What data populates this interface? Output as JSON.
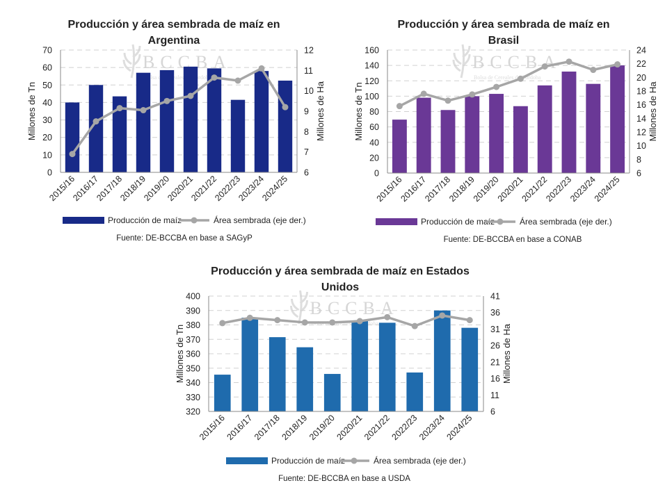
{
  "categories": [
    "2015/16",
    "2016/17",
    "2017/18",
    "2018/19",
    "2019/20",
    "2020/21",
    "2021/22",
    "2022/23",
    "2023/24",
    "2024/25"
  ],
  "line_color": "#a6a6a6",
  "watermark": {
    "logo": "BCCBA",
    "sub": "Bolsa de Cereales de Córdoba"
  },
  "chart_data": [
    {
      "type": "bar+line",
      "title_lines": [
        "Producción y área sembrada de maíz en",
        "Argentina"
      ],
      "ylabel": "Millones de Tn",
      "y2label": "Millones de Ha",
      "ylim": [
        0,
        70
      ],
      "yticks": [
        0,
        10,
        20,
        30,
        40,
        50,
        60,
        70
      ],
      "y2lim": [
        6,
        12
      ],
      "y2ticks": [
        6,
        7,
        8,
        9,
        10,
        11,
        12
      ],
      "grid": true,
      "legend_position": "bottom",
      "bar_color": "#182a88",
      "series": [
        {
          "name": "Producción de maíz",
          "kind": "bar",
          "axis": "left",
          "values": [
            40,
            50,
            43.5,
            57,
            58.5,
            60.5,
            59.5,
            41.5,
            58,
            52.5
          ]
        },
        {
          "name": "Área sembrada (eje der.)",
          "kind": "line",
          "axis": "right",
          "values": [
            6.9,
            8.5,
            9.15,
            9.05,
            9.5,
            9.75,
            10.65,
            10.5,
            11.1,
            9.2
          ]
        }
      ],
      "source": "Fuente: DE-BCCBA en base a SAGyP"
    },
    {
      "type": "bar+line",
      "title_lines": [
        "Producción y área sembrada de maíz en",
        "Brasil"
      ],
      "ylabel": "Millones de Tn",
      "y2label": "Millones de Ha",
      "ylim": [
        0,
        160
      ],
      "yticks": [
        0,
        20,
        40,
        60,
        80,
        100,
        120,
        140,
        160
      ],
      "y2lim": [
        6,
        24
      ],
      "y2ticks": [
        6,
        8,
        10,
        12,
        14,
        16,
        18,
        20,
        22,
        24
      ],
      "grid": true,
      "legend_position": "bottom",
      "bar_color": "#6a3896",
      "series": [
        {
          "name": "Producción de maíz",
          "kind": "bar",
          "axis": "left",
          "values": [
            69.5,
            98,
            82,
            100,
            103,
            87,
            114,
            132,
            116,
            140
          ]
        },
        {
          "name": "Área sembrada (eje der.)",
          "kind": "line",
          "axis": "right",
          "values": [
            15.8,
            17.6,
            16.6,
            17.5,
            18.6,
            19.8,
            21.6,
            22.3,
            21.1,
            21.9
          ]
        }
      ],
      "source": "Fuente: DE-BCCBA en base a CONAB"
    },
    {
      "type": "bar+line",
      "title_lines": [
        "Producción y área sembrada de maíz en Estados",
        "Unidos"
      ],
      "ylabel": "Millones de Tn",
      "y2label": "Millones de Ha",
      "ylim": [
        320,
        400
      ],
      "yticks": [
        320,
        330,
        340,
        350,
        360,
        370,
        380,
        390,
        400
      ],
      "y2lim": [
        6,
        41
      ],
      "y2ticks": [
        6,
        11,
        16,
        21,
        26,
        31,
        36,
        41
      ],
      "grid": true,
      "legend_position": "bottom",
      "bar_color": "#1f6bad",
      "series": [
        {
          "name": "Producción de maíz",
          "kind": "bar",
          "axis": "left",
          "values": [
            345.5,
            385,
            371.5,
            364.5,
            346,
            383,
            381.5,
            347,
            390,
            378
          ]
        },
        {
          "name": "Área sembrada (eje der.)",
          "kind": "line",
          "axis": "right",
          "values": [
            32.8,
            34.4,
            33.7,
            33.0,
            33.0,
            33.4,
            34.6,
            31.9,
            35.1,
            33.7
          ]
        }
      ],
      "source": "Fuente: DE-BCCBA en base a USDA"
    }
  ]
}
